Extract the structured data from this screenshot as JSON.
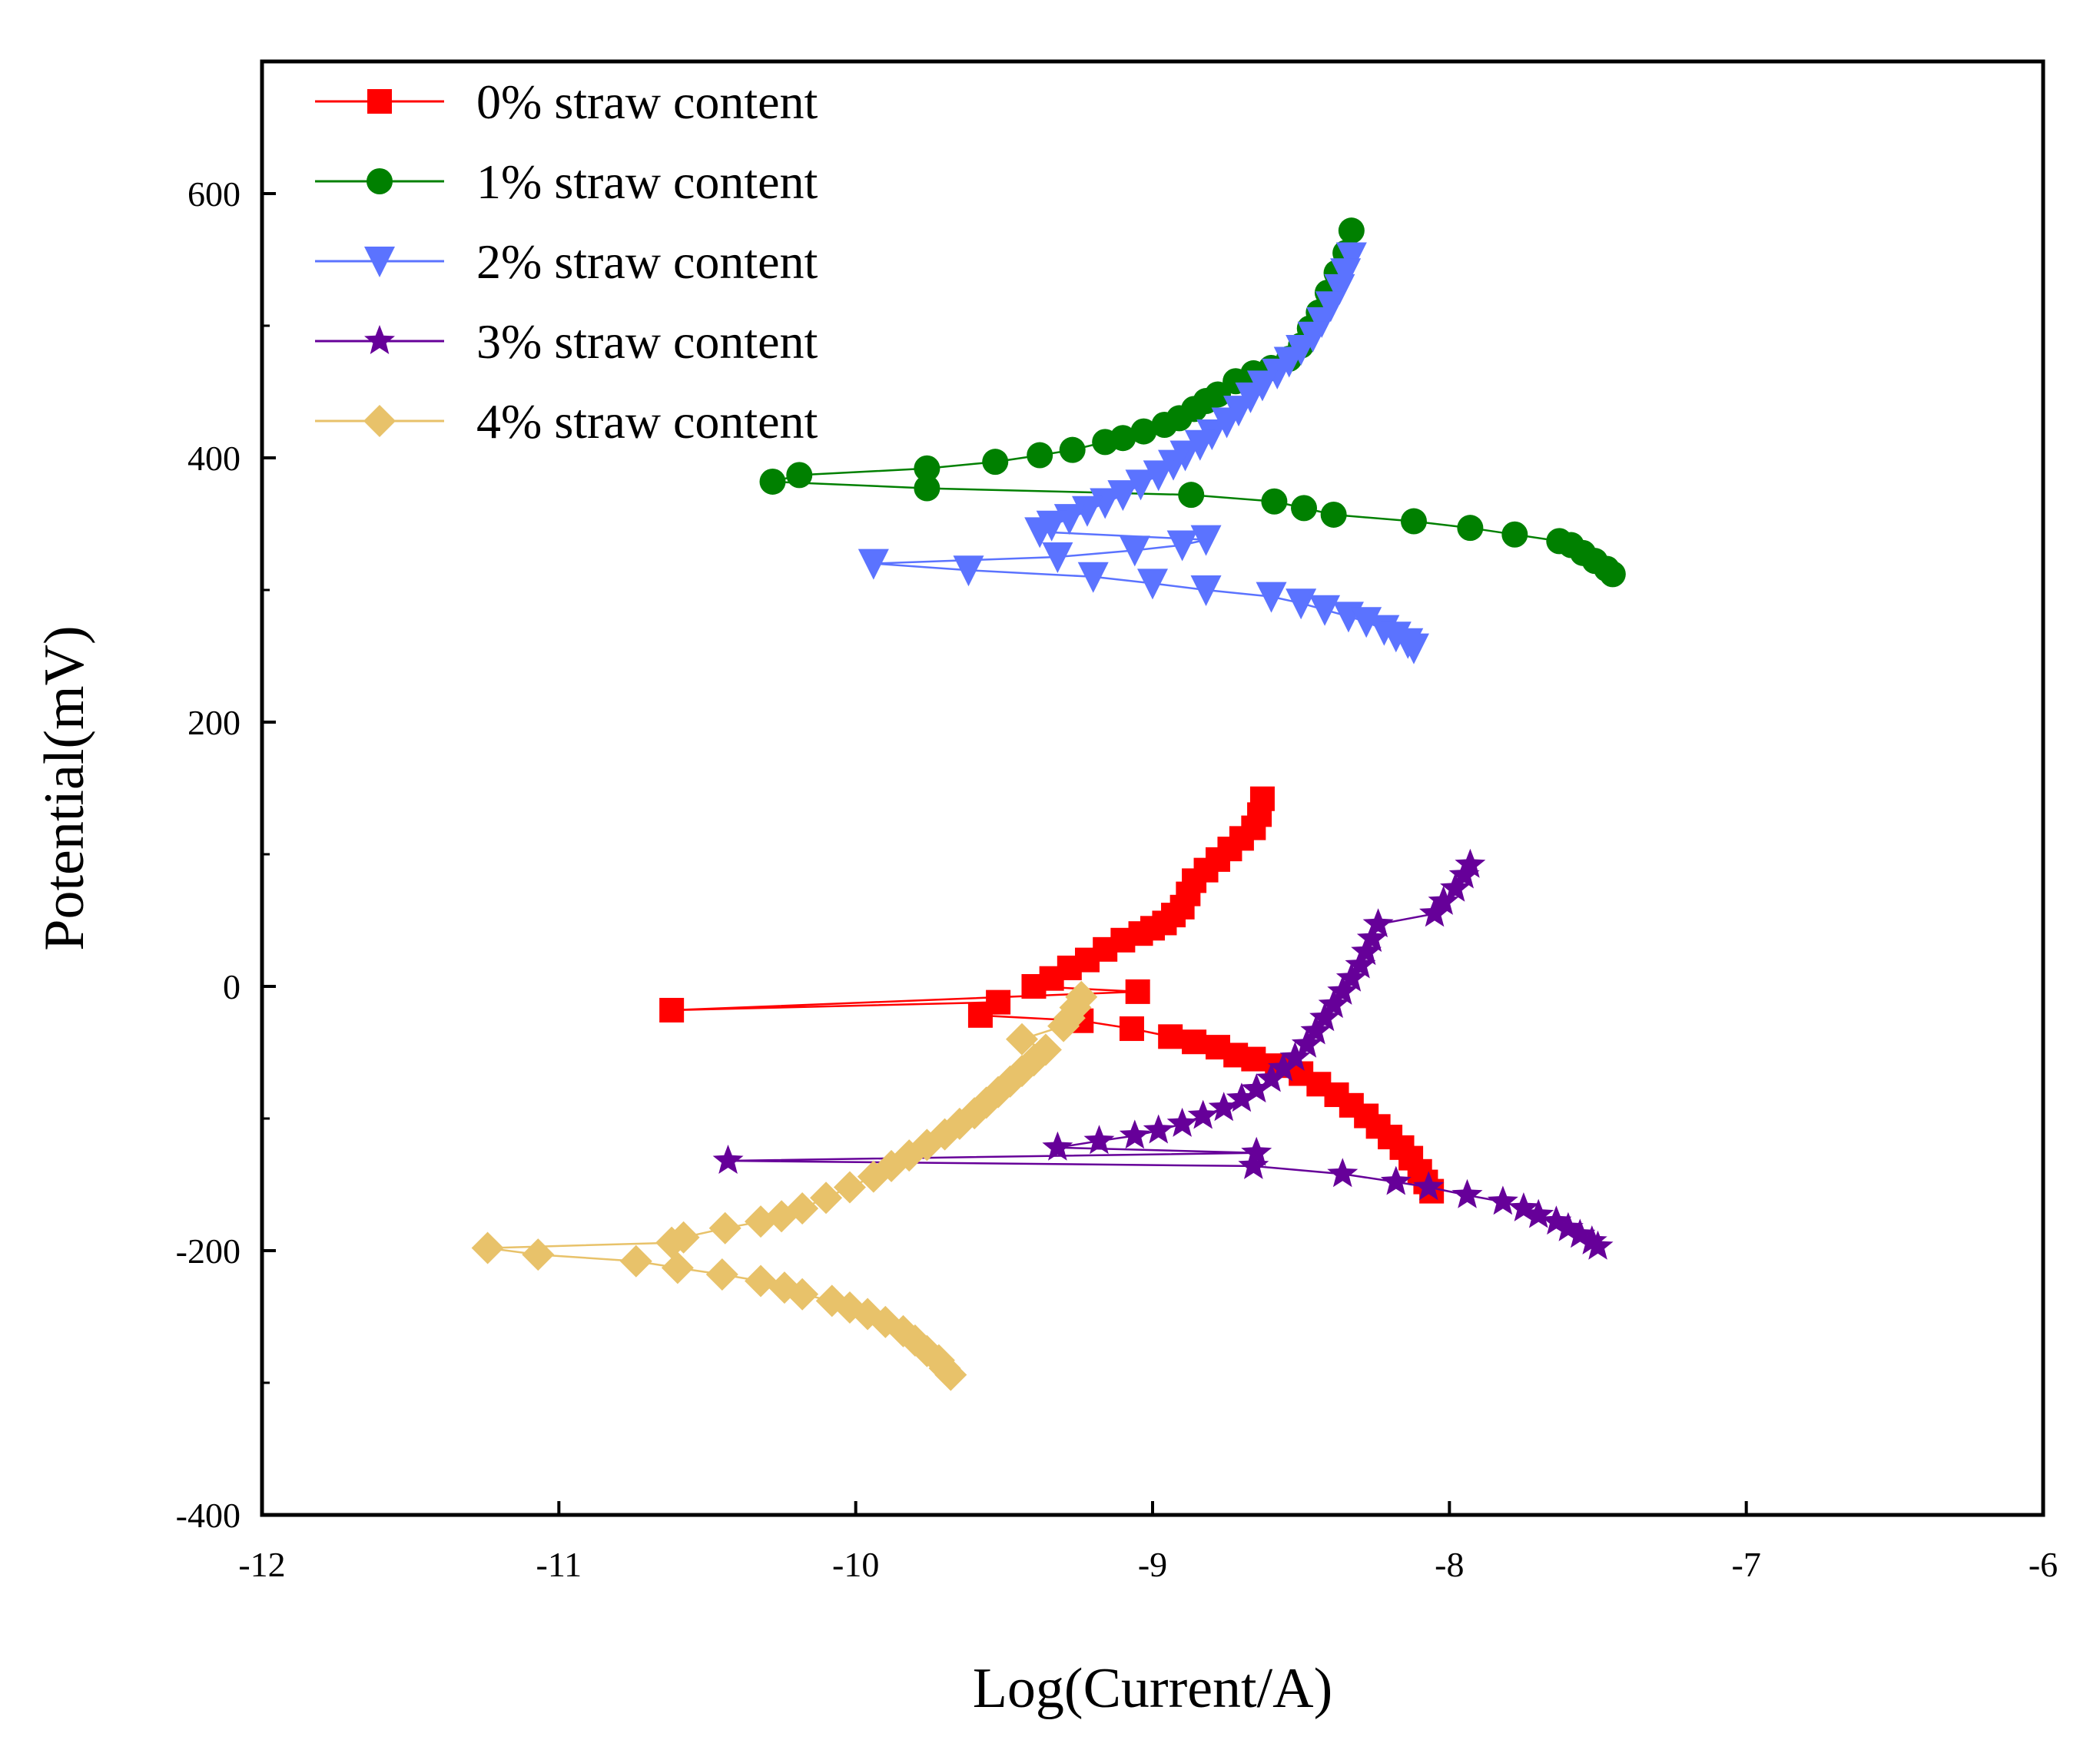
{
  "chart_data": {
    "type": "line",
    "title": "",
    "xlabel": "Log(Current/A)",
    "ylabel": "Potential(mV)",
    "xlim": [
      -12,
      -6
    ],
    "ylim": [
      -400,
      700
    ],
    "xticks": [
      -12,
      -11,
      -10,
      -9,
      -8,
      -7,
      -6
    ],
    "yticks": [
      -400,
      -200,
      0,
      200,
      400,
      600
    ],
    "xtick_labels": [
      "-12",
      "-11",
      "-10",
      "-9",
      "-8",
      "-7",
      "-6"
    ],
    "ytick_labels": [
      "-400",
      "-200",
      "0",
      "200",
      "400",
      "600"
    ],
    "legend_position": "top-left",
    "series": [
      {
        "name": "0% straw content",
        "color": "#ff0000",
        "marker": "square",
        "points": [
          [
            -8.63,
            142
          ],
          [
            -8.64,
            130
          ],
          [
            -8.66,
            120
          ],
          [
            -8.7,
            112
          ],
          [
            -8.74,
            104
          ],
          [
            -8.78,
            96
          ],
          [
            -8.82,
            88
          ],
          [
            -8.86,
            80
          ],
          [
            -8.88,
            70
          ],
          [
            -8.9,
            60
          ],
          [
            -8.93,
            54
          ],
          [
            -8.96,
            48
          ],
          [
            -9.0,
            44
          ],
          [
            -9.04,
            40
          ],
          [
            -9.1,
            35
          ],
          [
            -9.16,
            28
          ],
          [
            -9.22,
            20
          ],
          [
            -9.28,
            14
          ],
          [
            -9.34,
            6
          ],
          [
            -9.4,
            0
          ],
          [
            -9.05,
            -4
          ],
          [
            -10.62,
            -18
          ],
          [
            -9.52,
            -12
          ],
          [
            -9.58,
            -22
          ],
          [
            -9.24,
            -26
          ],
          [
            -9.07,
            -32
          ],
          [
            -8.94,
            -38
          ],
          [
            -8.86,
            -42
          ],
          [
            -8.78,
            -46
          ],
          [
            -8.72,
            -52
          ],
          [
            -8.66,
            -55
          ],
          [
            -8.58,
            -60
          ],
          [
            -8.5,
            -66
          ],
          [
            -8.44,
            -74
          ],
          [
            -8.38,
            -82
          ],
          [
            -8.33,
            -90
          ],
          [
            -8.28,
            -98
          ],
          [
            -8.24,
            -106
          ],
          [
            -8.2,
            -114
          ],
          [
            -8.16,
            -122
          ],
          [
            -8.13,
            -130
          ],
          [
            -8.1,
            -140
          ],
          [
            -8.08,
            -148
          ],
          [
            -8.06,
            -155
          ]
        ]
      },
      {
        "name": "1% straw content",
        "color": "#008000",
        "marker": "circle",
        "points": [
          [
            -8.33,
            572
          ],
          [
            -8.35,
            555
          ],
          [
            -8.38,
            540
          ],
          [
            -8.41,
            525
          ],
          [
            -8.44,
            510
          ],
          [
            -8.47,
            498
          ],
          [
            -8.5,
            485
          ],
          [
            -8.54,
            475
          ],
          [
            -8.6,
            468
          ],
          [
            -8.66,
            464
          ],
          [
            -8.72,
            458
          ],
          [
            -8.78,
            448
          ],
          [
            -8.82,
            443
          ],
          [
            -8.86,
            437
          ],
          [
            -8.91,
            430
          ],
          [
            -8.96,
            425
          ],
          [
            -9.03,
            420
          ],
          [
            -9.1,
            415
          ],
          [
            -9.16,
            412
          ],
          [
            -9.27,
            406
          ],
          [
            -9.38,
            402
          ],
          [
            -9.53,
            397
          ],
          [
            -9.76,
            392
          ],
          [
            -10.19,
            387
          ],
          [
            -10.28,
            382
          ],
          [
            -9.76,
            377
          ],
          [
            -8.87,
            372
          ],
          [
            -8.59,
            367
          ],
          [
            -8.49,
            362
          ],
          [
            -8.39,
            357
          ],
          [
            -8.12,
            352
          ],
          [
            -7.93,
            347
          ],
          [
            -7.78,
            342
          ],
          [
            -7.63,
            337
          ],
          [
            -7.59,
            334
          ],
          [
            -7.55,
            328
          ],
          [
            -7.51,
            322
          ],
          [
            -7.47,
            316
          ],
          [
            -7.45,
            312
          ]
        ]
      },
      {
        "name": "2% straw content",
        "color": "#5b73ff",
        "marker": "triangle-down",
        "points": [
          [
            -8.33,
            552
          ],
          [
            -8.35,
            540
          ],
          [
            -8.37,
            528
          ],
          [
            -8.4,
            515
          ],
          [
            -8.43,
            503
          ],
          [
            -8.46,
            492
          ],
          [
            -8.5,
            482
          ],
          [
            -8.54,
            473
          ],
          [
            -8.58,
            464
          ],
          [
            -8.63,
            455
          ],
          [
            -8.67,
            446
          ],
          [
            -8.71,
            436
          ],
          [
            -8.75,
            427
          ],
          [
            -8.8,
            418
          ],
          [
            -8.84,
            410
          ],
          [
            -8.89,
            402
          ],
          [
            -8.93,
            395
          ],
          [
            -8.98,
            387
          ],
          [
            -9.04,
            380
          ],
          [
            -9.1,
            372
          ],
          [
            -9.16,
            366
          ],
          [
            -9.22,
            360
          ],
          [
            -9.28,
            354
          ],
          [
            -9.34,
            349
          ],
          [
            -9.38,
            344
          ],
          [
            -8.82,
            338
          ],
          [
            -8.9,
            334
          ],
          [
            -9.06,
            330
          ],
          [
            -9.32,
            325
          ],
          [
            -9.94,
            320
          ],
          [
            -9.62,
            315
          ],
          [
            -9.2,
            310
          ],
          [
            -9.0,
            305
          ],
          [
            -8.82,
            300
          ],
          [
            -8.6,
            295
          ],
          [
            -8.5,
            290
          ],
          [
            -8.42,
            285
          ],
          [
            -8.34,
            280
          ],
          [
            -8.28,
            276
          ],
          [
            -8.22,
            270
          ],
          [
            -8.18,
            265
          ],
          [
            -8.14,
            260
          ],
          [
            -8.12,
            256
          ]
        ]
      },
      {
        "name": "3% straw content",
        "color": "#660099",
        "marker": "star",
        "points": [
          [
            -7.93,
            92
          ],
          [
            -7.95,
            84
          ],
          [
            -7.98,
            74
          ],
          [
            -8.02,
            64
          ],
          [
            -8.05,
            55
          ],
          [
            -8.24,
            47
          ],
          [
            -8.26,
            36
          ],
          [
            -8.28,
            26
          ],
          [
            -8.3,
            16
          ],
          [
            -8.33,
            6
          ],
          [
            -8.36,
            -4
          ],
          [
            -8.39,
            -14
          ],
          [
            -8.42,
            -24
          ],
          [
            -8.45,
            -34
          ],
          [
            -8.48,
            -44
          ],
          [
            -8.52,
            -54
          ],
          [
            -8.56,
            -62
          ],
          [
            -8.6,
            -70
          ],
          [
            -8.65,
            -78
          ],
          [
            -8.7,
            -85
          ],
          [
            -8.76,
            -92
          ],
          [
            -8.83,
            -98
          ],
          [
            -8.9,
            -104
          ],
          [
            -8.98,
            -109
          ],
          [
            -9.06,
            -113
          ],
          [
            -9.18,
            -117
          ],
          [
            -9.32,
            -122
          ],
          [
            -8.65,
            -126
          ],
          [
            -10.43,
            -132
          ],
          [
            -8.66,
            -136
          ],
          [
            -8.36,
            -142
          ],
          [
            -8.18,
            -148
          ],
          [
            -8.07,
            -152
          ],
          [
            -7.94,
            -158
          ],
          [
            -7.82,
            -163
          ],
          [
            -7.75,
            -168
          ],
          [
            -7.7,
            -173
          ],
          [
            -7.64,
            -178
          ],
          [
            -7.6,
            -183
          ],
          [
            -7.56,
            -188
          ],
          [
            -7.52,
            -193
          ],
          [
            -7.5,
            -197
          ]
        ]
      },
      {
        "name": "4% straw content",
        "color": "#e8c26a",
        "marker": "diamond",
        "points": [
          [
            -9.24,
            -8
          ],
          [
            -9.26,
            -16
          ],
          [
            -9.28,
            -24
          ],
          [
            -9.3,
            -30
          ],
          [
            -9.44,
            -40
          ],
          [
            -9.36,
            -48
          ],
          [
            -9.4,
            -56
          ],
          [
            -9.44,
            -64
          ],
          [
            -9.48,
            -72
          ],
          [
            -9.52,
            -80
          ],
          [
            -9.56,
            -88
          ],
          [
            -9.6,
            -96
          ],
          [
            -9.65,
            -104
          ],
          [
            -9.7,
            -112
          ],
          [
            -9.76,
            -120
          ],
          [
            -9.82,
            -128
          ],
          [
            -9.88,
            -136
          ],
          [
            -9.94,
            -144
          ],
          [
            -10.02,
            -152
          ],
          [
            -10.1,
            -160
          ],
          [
            -10.18,
            -168
          ],
          [
            -10.25,
            -174
          ],
          [
            -10.32,
            -178
          ],
          [
            -10.44,
            -183
          ],
          [
            -10.58,
            -190
          ],
          [
            -10.62,
            -194
          ],
          [
            -11.24,
            -198
          ],
          [
            -11.07,
            -203
          ],
          [
            -10.74,
            -208
          ],
          [
            -10.6,
            -213
          ],
          [
            -10.45,
            -218
          ],
          [
            -10.32,
            -223
          ],
          [
            -10.24,
            -228
          ],
          [
            -10.18,
            -233
          ],
          [
            -10.08,
            -238
          ],
          [
            -10.02,
            -243
          ],
          [
            -9.96,
            -248
          ],
          [
            -9.9,
            -254
          ],
          [
            -9.84,
            -261
          ],
          [
            -9.8,
            -268
          ],
          [
            -9.76,
            -276
          ],
          [
            -9.72,
            -283
          ],
          [
            -9.7,
            -289
          ],
          [
            -9.68,
            -294
          ]
        ]
      }
    ]
  }
}
